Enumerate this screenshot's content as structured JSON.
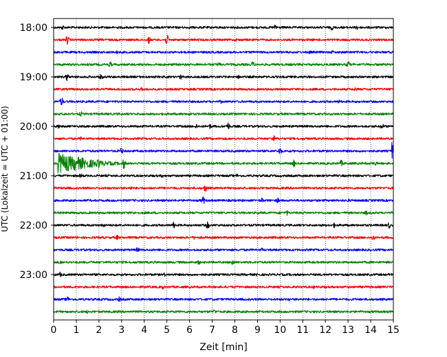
{
  "chart_data": {
    "type": "line",
    "title": "",
    "xlabel": "Zeit  [min]",
    "ylabel": "UTC (Lokalzeit = UTC + 01:00)",
    "xlim": [
      0,
      15
    ],
    "x_ticks": [
      0,
      1,
      2,
      3,
      4,
      5,
      6,
      7,
      8,
      9,
      10,
      11,
      12,
      13,
      14,
      15
    ],
    "x_tick_labels": [
      "0",
      "1",
      "2",
      "3",
      "4",
      "5",
      "6",
      "7",
      "8",
      "9",
      "10",
      "11",
      "12",
      "13",
      "14",
      "15"
    ],
    "y_ticks": [
      "18:00",
      "19:00",
      "20:00",
      "21:00",
      "22:00",
      "23:00"
    ],
    "grid": "x-dotted",
    "trace_colors": [
      "#000000",
      "#ff0000",
      "#0000ff",
      "#008000"
    ],
    "traces": [
      {
        "start": "18:00",
        "color": "#000000",
        "events": [
          {
            "t": 0.4,
            "a": 4
          },
          {
            "t": 9.8,
            "a": 5
          },
          {
            "t": 12.3,
            "a": 4
          },
          {
            "t": 13.4,
            "a": 4
          }
        ]
      },
      {
        "start": "18:15",
        "color": "#ff0000",
        "events": [
          {
            "t": 0.6,
            "a": 7
          },
          {
            "t": 4.2,
            "a": 6
          },
          {
            "t": 5.0,
            "a": 8
          },
          {
            "t": 8.1,
            "a": 3
          }
        ]
      },
      {
        "start": "18:30",
        "color": "#0000ff",
        "events": [
          {
            "t": 2.8,
            "a": 3
          },
          {
            "t": 11.3,
            "a": 3
          },
          {
            "t": 12.3,
            "a": 3
          }
        ]
      },
      {
        "start": "18:45",
        "color": "#008000",
        "events": [
          {
            "t": 2.5,
            "a": 5
          },
          {
            "t": 7.3,
            "a": 4
          },
          {
            "t": 8.8,
            "a": 5
          },
          {
            "t": 13.0,
            "a": 6
          }
        ]
      },
      {
        "start": "19:00",
        "color": "#000000",
        "events": [
          {
            "t": 0.6,
            "a": 6
          },
          {
            "t": 2.1,
            "a": 5
          },
          {
            "t": 5.6,
            "a": 4
          },
          {
            "t": 8.2,
            "a": 4
          }
        ]
      },
      {
        "start": "19:15",
        "color": "#ff0000",
        "events": [
          {
            "t": 3.9,
            "a": 3
          },
          {
            "t": 13.3,
            "a": 4
          }
        ]
      },
      {
        "start": "19:30",
        "color": "#0000ff",
        "events": [
          {
            "t": 0.35,
            "a": 7
          },
          {
            "t": 7.4,
            "a": 3
          },
          {
            "t": 12.6,
            "a": 3
          }
        ]
      },
      {
        "start": "19:45",
        "color": "#008000",
        "events": [
          {
            "t": 1.2,
            "a": 4
          },
          {
            "t": 6.0,
            "a": 3
          }
        ]
      },
      {
        "start": "20:00",
        "color": "#000000",
        "events": [
          {
            "t": 0.2,
            "a": 4
          },
          {
            "t": 6.3,
            "a": 4
          },
          {
            "t": 6.9,
            "a": 4
          },
          {
            "t": 7.7,
            "a": 6
          },
          {
            "t": 14.5,
            "a": 5
          }
        ]
      },
      {
        "start": "20:15",
        "color": "#ff0000",
        "events": [
          {
            "t": 9.7,
            "a": 6
          },
          {
            "t": 1.2,
            "a": 3
          }
        ]
      },
      {
        "start": "20:30",
        "color": "#0000ff",
        "events": [
          {
            "t": 3.0,
            "a": 5
          },
          {
            "t": 10.0,
            "a": 6
          },
          {
            "t": 14.95,
            "a": 13
          }
        ]
      },
      {
        "start": "20:45",
        "color": "#008000",
        "events": [
          {
            "t": 0.2,
            "a": 16
          },
          {
            "t": 0.9,
            "a": 11
          },
          {
            "t": 2.0,
            "a": 8
          },
          {
            "t": 3.1,
            "a": 8
          },
          {
            "t": 10.6,
            "a": 6
          },
          {
            "t": 12.7,
            "a": 5
          },
          {
            "t": 14.2,
            "a": 4
          }
        ]
      },
      {
        "start": "21:00",
        "color": "#000000",
        "events": [
          {
            "t": 1.2,
            "a": 4
          },
          {
            "t": 4.8,
            "a": 3
          },
          {
            "t": 8.1,
            "a": 3
          }
        ]
      },
      {
        "start": "21:15",
        "color": "#ff0000",
        "events": [
          {
            "t": 6.7,
            "a": 6
          },
          {
            "t": 3.4,
            "a": 3
          }
        ]
      },
      {
        "start": "21:30",
        "color": "#0000ff",
        "events": [
          {
            "t": 6.6,
            "a": 6
          },
          {
            "t": 9.2,
            "a": 4
          },
          {
            "t": 9.9,
            "a": 4
          },
          {
            "t": 13.0,
            "a": 3
          }
        ]
      },
      {
        "start": "21:45",
        "color": "#008000",
        "events": [
          {
            "t": 10.3,
            "a": 4
          },
          {
            "t": 13.8,
            "a": 4
          }
        ]
      },
      {
        "start": "22:00",
        "color": "#000000",
        "events": [
          {
            "t": 2.2,
            "a": 4
          },
          {
            "t": 5.3,
            "a": 5
          },
          {
            "t": 6.8,
            "a": 6
          },
          {
            "t": 12.4,
            "a": 4
          },
          {
            "t": 14.8,
            "a": 5
          }
        ]
      },
      {
        "start": "22:15",
        "color": "#ff0000",
        "events": [
          {
            "t": 2.8,
            "a": 4
          },
          {
            "t": 14.1,
            "a": 5
          },
          {
            "t": 6.2,
            "a": 3
          }
        ]
      },
      {
        "start": "22:30",
        "color": "#0000ff",
        "events": [
          {
            "t": 3.7,
            "a": 4
          },
          {
            "t": 9.2,
            "a": 3
          }
        ]
      },
      {
        "start": "22:45",
        "color": "#008000",
        "events": [
          {
            "t": 7.9,
            "a": 5
          },
          {
            "t": 6.4,
            "a": 4
          },
          {
            "t": 0.3,
            "a": 3
          }
        ]
      },
      {
        "start": "23:00",
        "color": "#000000",
        "events": [
          {
            "t": 0.3,
            "a": 4
          },
          {
            "t": 4.9,
            "a": 3
          },
          {
            "t": 9.0,
            "a": 3
          }
        ]
      },
      {
        "start": "23:15",
        "color": "#ff0000",
        "events": [
          {
            "t": 4.8,
            "a": 4
          },
          {
            "t": 11.5,
            "a": 3
          }
        ]
      },
      {
        "start": "23:30",
        "color": "#0000ff",
        "events": [
          {
            "t": 0.6,
            "a": 5
          },
          {
            "t": 2.9,
            "a": 4
          },
          {
            "t": 10.4,
            "a": 3
          }
        ]
      },
      {
        "start": "23:45",
        "color": "#008000",
        "events": [
          {
            "t": 1.5,
            "a": 3
          },
          {
            "t": 7.1,
            "a": 4
          }
        ]
      }
    ]
  }
}
